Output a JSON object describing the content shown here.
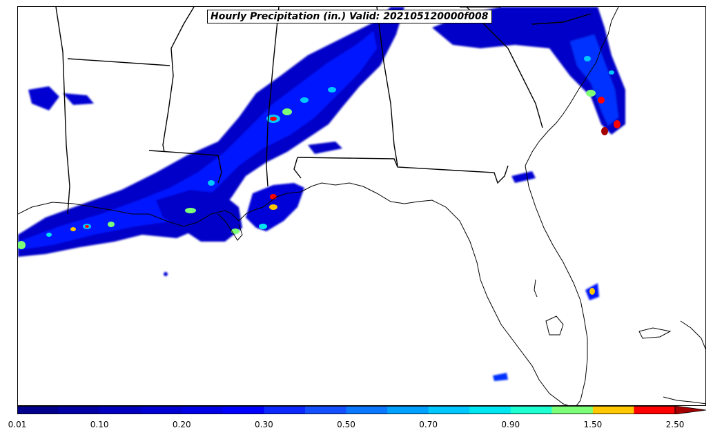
{
  "title": "Hourly Precipitation (in.) Valid: 202105120000f008",
  "colorbar": {
    "colors": [
      "#00008c",
      "#0000a5",
      "#0000be",
      "#0000d2",
      "#0000e6",
      "#0000ff",
      "#0a28ff",
      "#1450ff",
      "#0a78ff",
      "#00a0ff",
      "#00c8ff",
      "#00e6f0",
      "#1effd2",
      "#7dff78",
      "#ffc800",
      "#ff0000",
      "#a50000"
    ],
    "labels": [
      "0.01",
      "0.10",
      "0.20",
      "0.30",
      "0.50",
      "0.70",
      "0.90",
      "1.50",
      "2.50"
    ],
    "extend": "max"
  },
  "map": {
    "region": "Southeastern United States and Gulf of Mexico",
    "land_color": "#ffffff",
    "border_color": "#000000"
  }
}
